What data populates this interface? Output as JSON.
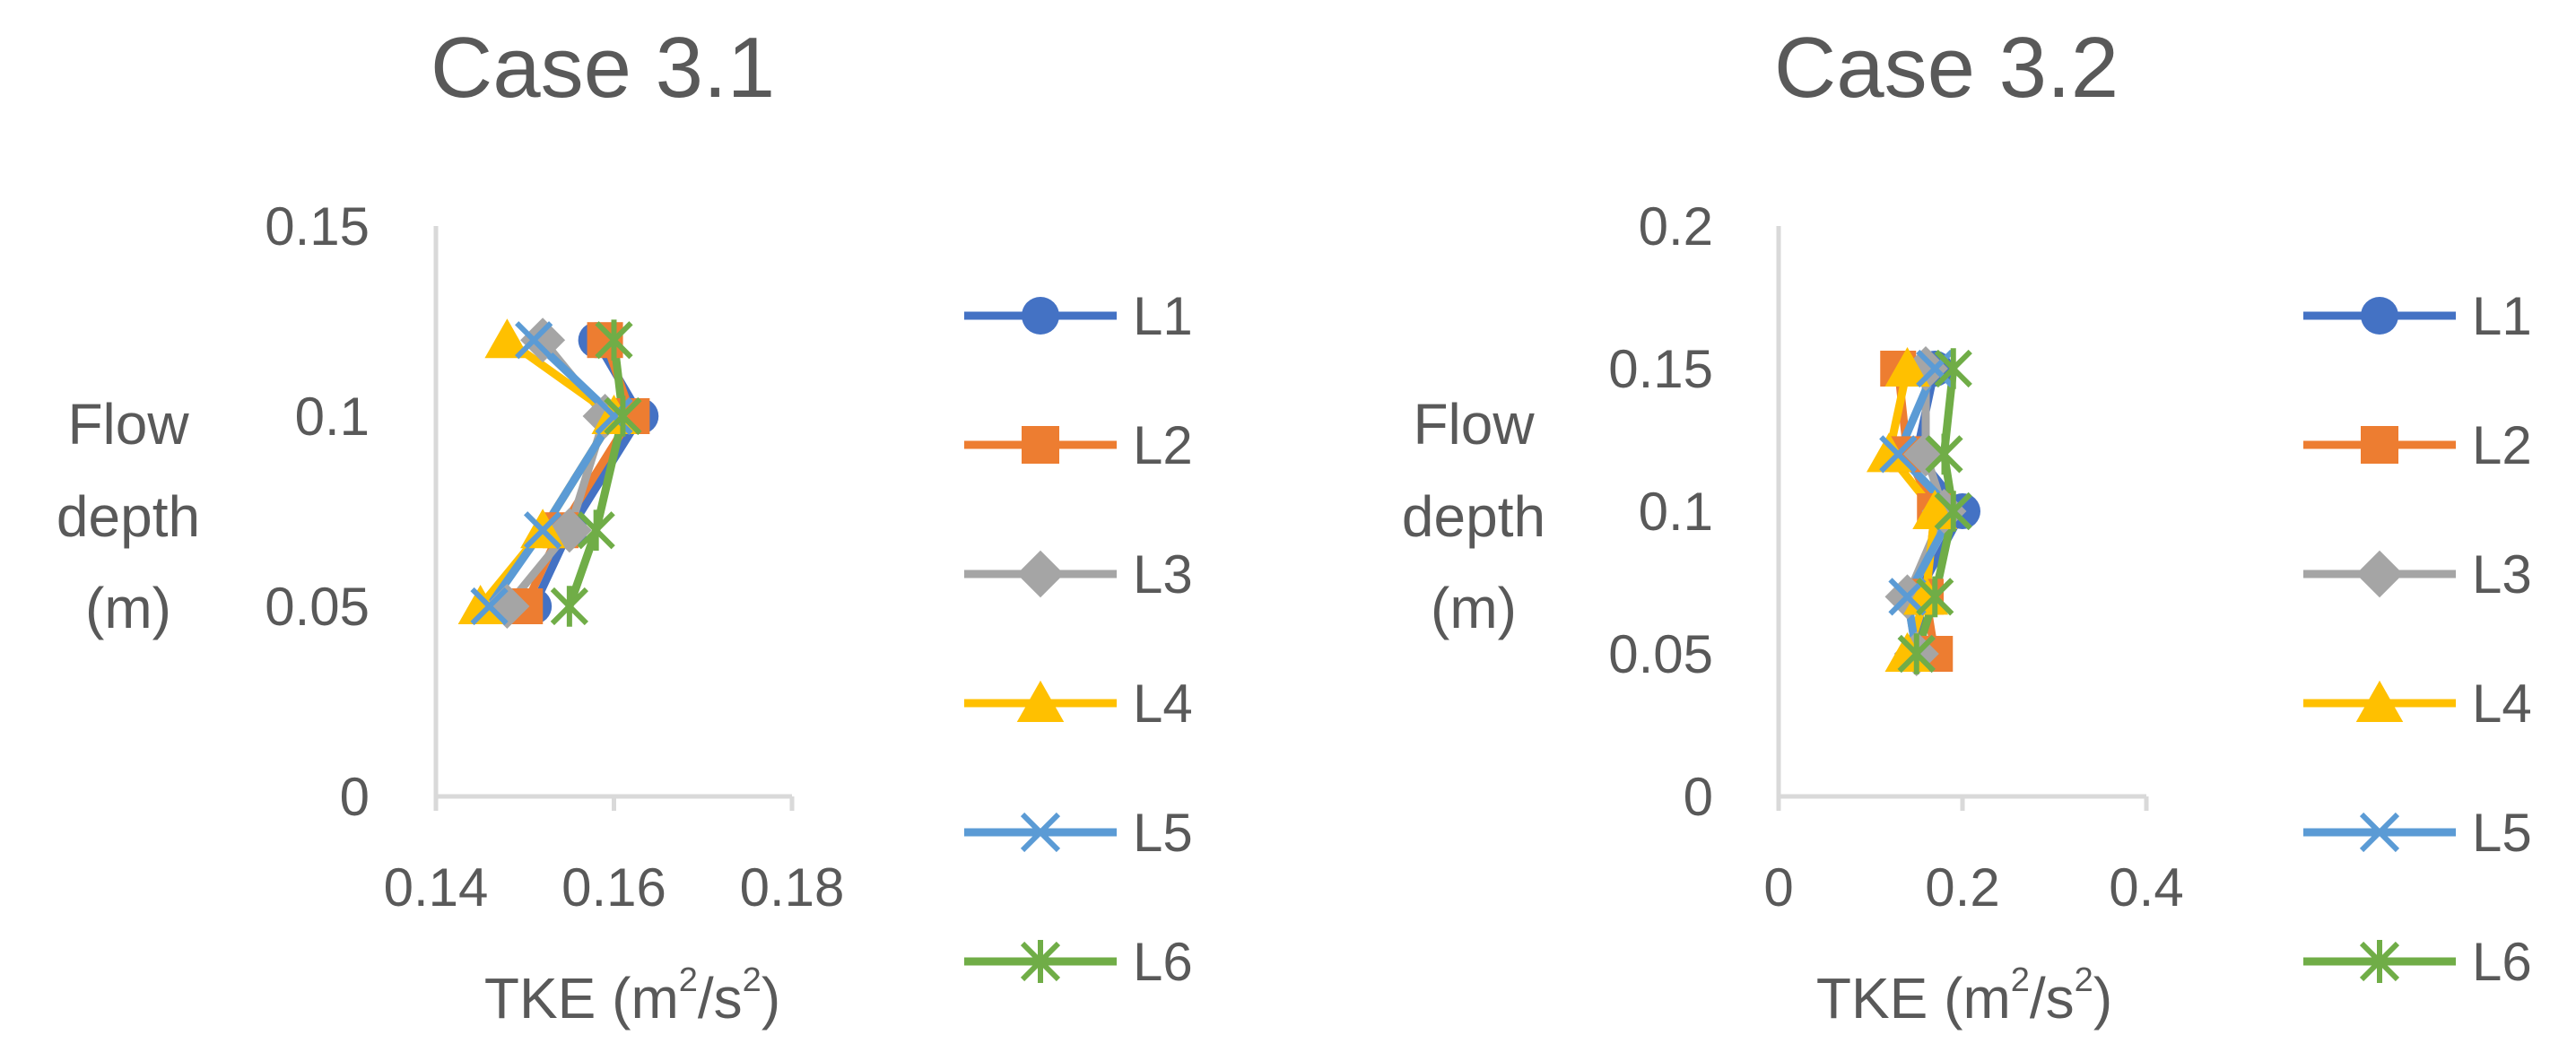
{
  "chart_data": [
    {
      "type": "line",
      "title": "Case 3.1",
      "xlabel": "TKE (m",
      "xlabel_sup1": "2",
      "xlabel_mid": "/s",
      "xlabel_sup2": "2",
      "xlabel_end": ")",
      "ylabel_lines": [
        "Flow",
        "depth",
        "(m)"
      ],
      "xlim": [
        0.14,
        0.18
      ],
      "ylim": [
        0,
        0.15
      ],
      "xticks": [
        "0.14",
        "0.16",
        "0.18"
      ],
      "xtick_values": [
        0.14,
        0.16,
        0.18
      ],
      "yticks": [
        "0",
        "0.05",
        "0.1",
        "0.15"
      ],
      "ytick_values": [
        0,
        0.05,
        0.1,
        0.15
      ],
      "series": [
        {
          "name": "L1",
          "color": "#4472C4",
          "marker": "circle",
          "x": [
            0.151,
            0.155,
            0.163,
            0.158
          ],
          "y": [
            0.05,
            0.07,
            0.1,
            0.12
          ]
        },
        {
          "name": "L2",
          "color": "#ED7D31",
          "marker": "square",
          "x": [
            0.15,
            0.154,
            0.162,
            0.159
          ],
          "y": [
            0.05,
            0.07,
            0.1,
            0.12
          ]
        },
        {
          "name": "L3",
          "color": "#A5A5A5",
          "marker": "diamond",
          "x": [
            0.148,
            0.155,
            0.159,
            0.152
          ],
          "y": [
            0.05,
            0.07,
            0.1,
            0.12
          ]
        },
        {
          "name": "L4",
          "color": "#FFC000",
          "marker": "triangle",
          "x": [
            0.145,
            0.152,
            0.16,
            0.148
          ],
          "y": [
            0.05,
            0.07,
            0.1,
            0.12
          ]
        },
        {
          "name": "L5",
          "color": "#5B9BD5",
          "marker": "x",
          "x": [
            0.146,
            0.152,
            0.16,
            0.151
          ],
          "y": [
            0.05,
            0.07,
            0.1,
            0.12
          ]
        },
        {
          "name": "L6",
          "color": "#70AD47",
          "marker": "star",
          "x": [
            0.155,
            0.158,
            0.161,
            0.16
          ],
          "y": [
            0.05,
            0.07,
            0.1,
            0.12
          ]
        }
      ]
    },
    {
      "type": "line",
      "title": "Case 3.2",
      "xlabel": "TKE (m",
      "xlabel_sup1": "2",
      "xlabel_mid": "/s",
      "xlabel_sup2": "2",
      "xlabel_end": ")",
      "ylabel_lines": [
        "Flow",
        "depth",
        "(m)"
      ],
      "xlim": [
        0,
        0.4
      ],
      "ylim": [
        0,
        0.2
      ],
      "xticks": [
        "0",
        "0.2",
        "0.4"
      ],
      "xtick_values": [
        0,
        0.2,
        0.4
      ],
      "yticks": [
        "0",
        "0.05",
        "0.1",
        "0.15",
        "0.2"
      ],
      "ytick_values": [
        0,
        0.05,
        0.1,
        0.15,
        0.2
      ],
      "series": [
        {
          "name": "L1",
          "color": "#4472C4",
          "marker": "circle",
          "x": [
            0.16,
            0.15,
            0.2,
            0.15,
            0.17
          ],
          "y": [
            0.05,
            0.07,
            0.1,
            0.12,
            0.15
          ]
        },
        {
          "name": "L2",
          "color": "#ED7D31",
          "marker": "square",
          "x": [
            0.17,
            0.16,
            0.17,
            0.14,
            0.13
          ],
          "y": [
            0.05,
            0.07,
            0.1,
            0.12,
            0.15
          ]
        },
        {
          "name": "L3",
          "color": "#A5A5A5",
          "marker": "diamond",
          "x": [
            0.15,
            0.14,
            0.18,
            0.16,
            0.16
          ],
          "y": [
            0.05,
            0.07,
            0.1,
            0.12,
            0.15
          ]
        },
        {
          "name": "L4",
          "color": "#FFC000",
          "marker": "triangle",
          "x": [
            0.14,
            0.16,
            0.17,
            0.12,
            0.14
          ],
          "y": [
            0.05,
            0.07,
            0.1,
            0.12,
            0.15
          ]
        },
        {
          "name": "L5",
          "color": "#5B9BD5",
          "marker": "x",
          "x": [
            0.15,
            0.14,
            0.19,
            0.13,
            0.17
          ],
          "y": [
            0.05,
            0.07,
            0.1,
            0.12,
            0.15
          ]
        },
        {
          "name": "L6",
          "color": "#70AD47",
          "marker": "star",
          "x": [
            0.15,
            0.17,
            0.19,
            0.18,
            0.19
          ],
          "y": [
            0.05,
            0.07,
            0.1,
            0.12,
            0.15
          ]
        }
      ]
    }
  ]
}
